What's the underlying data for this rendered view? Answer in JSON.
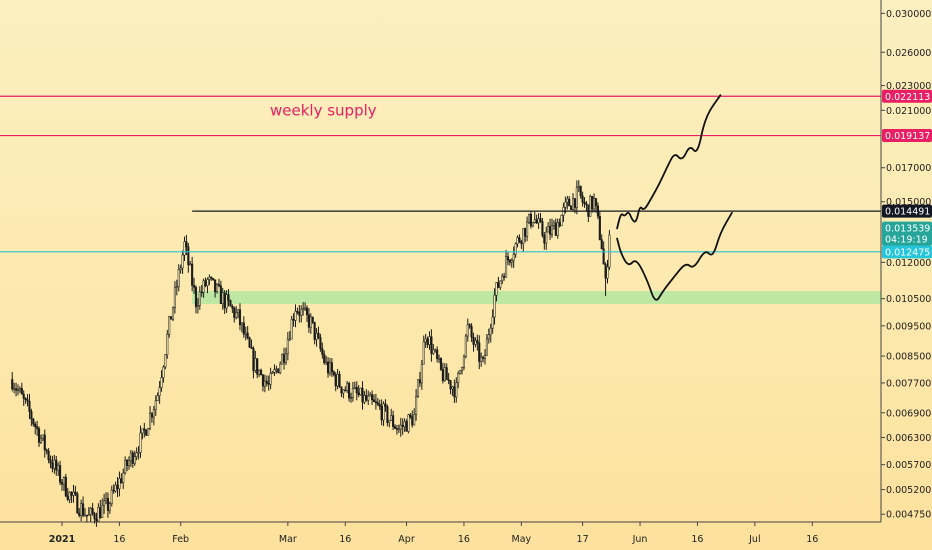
{
  "chart_data": {
    "type": "candlestick",
    "title": "",
    "xlabel": "",
    "ylabel": "",
    "ylim": [
      0.00465,
      0.0306
    ],
    "y_ticks": [
      "0.030000",
      "0.026000",
      "0.023000",
      "0.021000",
      "0.017000",
      "0.015000",
      "0.012000",
      "0.010500",
      "0.009500",
      "0.008500",
      "0.007700",
      "0.006900",
      "0.006300",
      "0.005700",
      "0.005200",
      "0.004750"
    ],
    "x_ticks": [
      {
        "label": "2021",
        "date": "2021-01-01",
        "bold": true
      },
      {
        "label": "16",
        "date": "2021-01-16"
      },
      {
        "label": "Feb",
        "date": "2021-02-01"
      },
      {
        "label": "Mar",
        "date": "2021-03-01"
      },
      {
        "label": "16",
        "date": "2021-03-16"
      },
      {
        "label": "Apr",
        "date": "2021-04-01"
      },
      {
        "label": "16",
        "date": "2021-04-16"
      },
      {
        "label": "May",
        "date": "2021-05-01"
      },
      {
        "label": "17",
        "date": "2021-05-17"
      },
      {
        "label": "Jun",
        "date": "2021-06-01"
      },
      {
        "label": "16",
        "date": "2021-06-16"
      },
      {
        "label": "Jul",
        "date": "2021-07-01"
      },
      {
        "label": "16",
        "date": "2021-07-16"
      }
    ],
    "price_path": [
      [
        "2020-12-19",
        0.0078
      ],
      [
        "2020-12-24",
        0.0068
      ],
      [
        "2020-12-29",
        0.0058
      ],
      [
        "2021-01-03",
        0.0051
      ],
      [
        "2021-01-08",
        0.0047
      ],
      [
        "2021-01-13",
        0.0049
      ],
      [
        "2021-01-18",
        0.0057
      ],
      [
        "2021-01-22",
        0.0063
      ],
      [
        "2021-01-26",
        0.0074
      ],
      [
        "2021-01-29",
        0.0095
      ],
      [
        "2021-02-02",
        0.0128
      ],
      [
        "2021-02-05",
        0.0104
      ],
      [
        "2021-02-08",
        0.0112
      ],
      [
        "2021-02-12",
        0.0105
      ],
      [
        "2021-02-16",
        0.0098
      ],
      [
        "2021-02-20",
        0.0083
      ],
      [
        "2021-02-24",
        0.0076
      ],
      [
        "2021-02-28",
        0.0086
      ],
      [
        "2021-03-03",
        0.0102
      ],
      [
        "2021-03-07",
        0.0096
      ],
      [
        "2021-03-11",
        0.0082
      ],
      [
        "2021-03-15",
        0.0076
      ],
      [
        "2021-03-20",
        0.0073
      ],
      [
        "2021-03-25",
        0.007
      ],
      [
        "2021-03-30",
        0.0065
      ],
      [
        "2021-04-03",
        0.0068
      ],
      [
        "2021-04-06",
        0.0093
      ],
      [
        "2021-04-10",
        0.008
      ],
      [
        "2021-04-14",
        0.0075
      ],
      [
        "2021-04-17",
        0.0094
      ],
      [
        "2021-04-21",
        0.0082
      ],
      [
        "2021-04-24",
        0.0106
      ],
      [
        "2021-04-27",
        0.012
      ],
      [
        "2021-05-01",
        0.0133
      ],
      [
        "2021-05-04",
        0.0142
      ],
      [
        "2021-05-07",
        0.0132
      ],
      [
        "2021-05-10",
        0.0137
      ],
      [
        "2021-05-13",
        0.0148
      ],
      [
        "2021-05-16",
        0.0154
      ],
      [
        "2021-05-18",
        0.0146
      ],
      [
        "2021-05-20",
        0.015
      ],
      [
        "2021-05-22",
        0.0128
      ],
      [
        "2021-05-23",
        0.011
      ],
      [
        "2021-05-24",
        0.0135
      ]
    ],
    "horizontal_levels": [
      {
        "price": 0.022113,
        "label": "0.022113",
        "color": "#e91e63"
      },
      {
        "price": 0.019137,
        "label": "0.019137",
        "color": "#e91e63"
      },
      {
        "price": 0.014491,
        "label": "0.014491",
        "color": "#131722",
        "start": "2021-02-04"
      },
      {
        "price": 0.012475,
        "label": "0.012475",
        "color": "#26c6da"
      }
    ],
    "zone": {
      "low": 0.0103,
      "high": 0.0108,
      "start": "2021-02-04",
      "color": "#a8e6a0"
    },
    "current_price": {
      "label": "0.013539",
      "countdown": "04:19:19",
      "color": "#26a69a"
    },
    "annotation": {
      "text": "weekly supply",
      "color": "#e91e63"
    },
    "projection_up": [
      [
        "2021-05-26",
        0.0136
      ],
      [
        "2021-05-27",
        0.0144
      ],
      [
        "2021-05-28",
        0.0142
      ],
      [
        "2021-05-29",
        0.0145
      ],
      [
        "2021-05-30",
        0.014
      ],
      [
        "2021-05-31",
        0.0139
      ],
      [
        "2021-06-01",
        0.0148
      ],
      [
        "2021-06-02",
        0.0145
      ],
      [
        "2021-06-04",
        0.0152
      ],
      [
        "2021-06-06",
        0.016
      ],
      [
        "2021-06-08",
        0.017
      ],
      [
        "2021-06-10",
        0.018
      ],
      [
        "2021-06-12",
        0.0174
      ],
      [
        "2021-06-14",
        0.0185
      ],
      [
        "2021-06-16",
        0.0178
      ],
      [
        "2021-06-18",
        0.0205
      ],
      [
        "2021-06-22",
        0.0222
      ]
    ],
    "projection_down": [
      [
        "2021-05-26",
        0.0131
      ],
      [
        "2021-05-27",
        0.0124
      ],
      [
        "2021-05-29",
        0.0118
      ],
      [
        "2021-05-31",
        0.0122
      ],
      [
        "2021-06-03",
        0.0112
      ],
      [
        "2021-06-05",
        0.0103
      ],
      [
        "2021-06-07",
        0.0108
      ],
      [
        "2021-06-10",
        0.0114
      ],
      [
        "2021-06-13",
        0.012
      ],
      [
        "2021-06-15",
        0.0117
      ],
      [
        "2021-06-18",
        0.0126
      ],
      [
        "2021-06-20",
        0.0122
      ],
      [
        "2021-06-22",
        0.0134
      ],
      [
        "2021-06-25",
        0.0144
      ]
    ]
  }
}
